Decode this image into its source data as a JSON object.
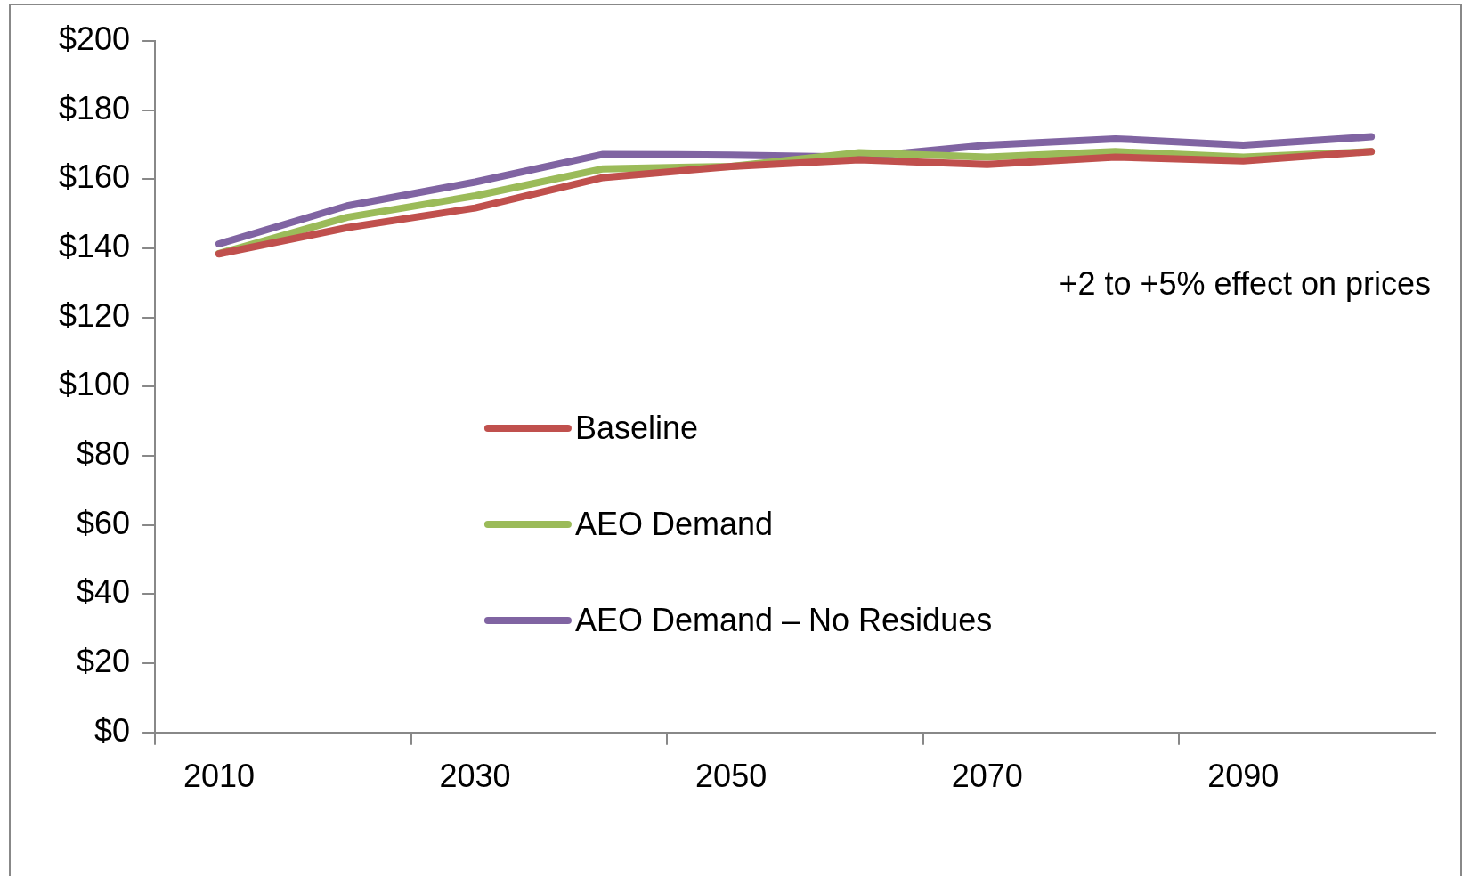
{
  "chart_data": {
    "type": "line",
    "categories": [
      "2010",
      null,
      "2030",
      null,
      "2050",
      null,
      "2070",
      null,
      "2090",
      null
    ],
    "series": [
      {
        "name": "Baseline",
        "color": "#c0504d",
        "values": [
          138.4,
          146,
          151.7,
          160.5,
          163.7,
          165.6,
          164.3,
          166.4,
          165.3,
          168
        ]
      },
      {
        "name": "AEO Demand",
        "color": "#9bbb59",
        "values": [
          138.5,
          149,
          155.2,
          163,
          163.7,
          167.7,
          166.4,
          168,
          166.4,
          168
        ]
      },
      {
        "name": "AEO Demand – No Residues",
        "color": "#8064a2",
        "values": [
          141.3,
          152.3,
          159.2,
          167.2,
          167,
          166.4,
          169.9,
          171.7,
          169.9,
          172.3
        ]
      }
    ],
    "ylim": [
      0,
      200
    ],
    "yticks": [
      {
        "value": 0,
        "label": "$0"
      },
      {
        "value": 20,
        "label": "$20"
      },
      {
        "value": 40,
        "label": "$40"
      },
      {
        "value": 60,
        "label": "$60"
      },
      {
        "value": 80,
        "label": "$80"
      },
      {
        "value": 100,
        "label": "$100"
      },
      {
        "value": 120,
        "label": "$120"
      },
      {
        "value": 140,
        "label": "$140"
      },
      {
        "value": 160,
        "label": "$160"
      },
      {
        "value": 180,
        "label": "$180"
      },
      {
        "value": 200,
        "label": "$200"
      }
    ],
    "annotations": [
      "+2 to +5% effect on prices"
    ],
    "grid": false,
    "legend": "center",
    "marker": "none",
    "line_style": "solid"
  }
}
